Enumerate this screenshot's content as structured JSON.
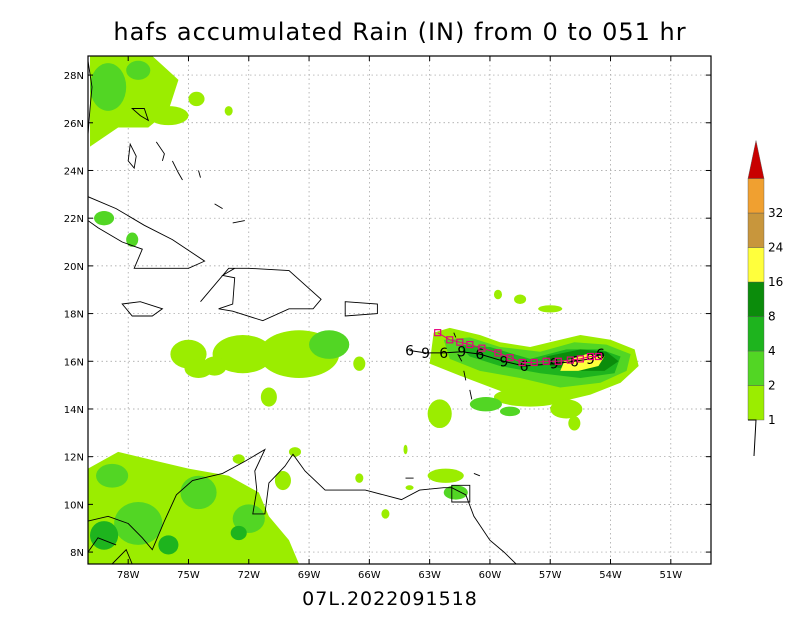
{
  "title": "hafs accumulated Rain (IN) from 0 to 051 hr",
  "storm_stamp": "07L.2022091518",
  "map": {
    "lon_range": [
      -80,
      -49
    ],
    "lat_range": [
      7.5,
      28.8
    ],
    "lat_ticks": [
      {
        "value": 8,
        "label": "8N"
      },
      {
        "value": 10,
        "label": "10N"
      },
      {
        "value": 12,
        "label": "12N"
      },
      {
        "value": 14,
        "label": "14N"
      },
      {
        "value": 16,
        "label": "16N"
      },
      {
        "value": 18,
        "label": "18N"
      },
      {
        "value": 20,
        "label": "20N"
      },
      {
        "value": 22,
        "label": "22N"
      },
      {
        "value": 24,
        "label": "24N"
      },
      {
        "value": 26,
        "label": "26N"
      },
      {
        "value": 28,
        "label": "28N"
      }
    ],
    "lon_ticks": [
      {
        "value": -78,
        "label": "78W"
      },
      {
        "value": -75,
        "label": "75W"
      },
      {
        "value": -72,
        "label": "72W"
      },
      {
        "value": -69,
        "label": "69W"
      },
      {
        "value": -66,
        "label": "66W"
      },
      {
        "value": -63,
        "label": "63W"
      },
      {
        "value": -60,
        "label": "60W"
      },
      {
        "value": -57,
        "label": "57W"
      },
      {
        "value": -54,
        "label": "54W"
      },
      {
        "value": -51,
        "label": "51W"
      }
    ],
    "grid": "dotted"
  },
  "colorbar": {
    "levels": [
      {
        "label": "1",
        "color": "#9bed00"
      },
      {
        "label": "2",
        "color": "#52d624"
      },
      {
        "label": "4",
        "color": "#1eb41e"
      },
      {
        "label": "8",
        "color": "#0b8c0b"
      },
      {
        "label": "16",
        "color": "#ffff3c"
      },
      {
        "label": "24",
        "color": "#c8963c"
      },
      {
        "label": "32",
        "color": "#f0a030"
      }
    ],
    "top_color": "#c80000"
  },
  "colors": {
    "track_model": "#000000",
    "track_observed": "#e6007e",
    "coastline": "#000000"
  },
  "track": {
    "model_lons": [
      -64.0,
      -63.2,
      -62.3,
      -61.4,
      -60.5,
      -59.3,
      -58.3,
      -56.8,
      -55.8,
      -55.0,
      -54.5
    ],
    "model_lats": [
      16.45,
      16.35,
      16.35,
      16.4,
      16.3,
      16.0,
      15.8,
      15.9,
      16.0,
      16.1,
      16.3
    ],
    "observed_lons": [
      -62.6,
      -62.0,
      -61.5,
      -61.0,
      -60.4,
      -59.6,
      -59.0,
      -58.4,
      -57.8,
      -57.2,
      -56.6,
      -56.0,
      -55.5,
      -55.0,
      -54.6
    ],
    "observed_lats": [
      17.2,
      16.9,
      16.8,
      16.7,
      16.55,
      16.35,
      16.15,
      15.95,
      15.95,
      16.0,
      16.0,
      16.05,
      16.1,
      16.2,
      16.2
    ]
  }
}
